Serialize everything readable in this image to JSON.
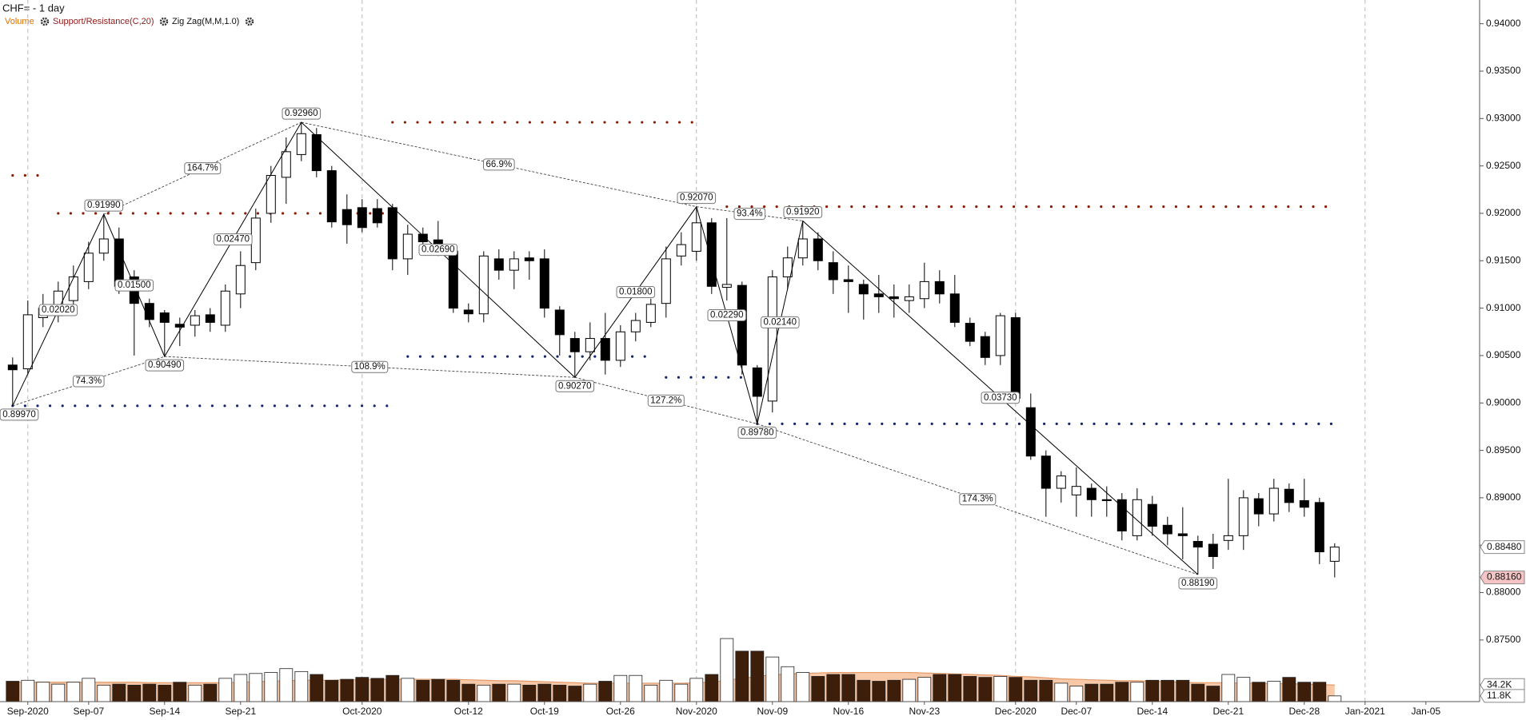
{
  "chart_data": {
    "type": "candlestick",
    "title": "CHF= - 1 day",
    "categories": [
      null,
      "Sep-2020",
      null,
      null,
      null,
      "Sep-07",
      null,
      null,
      null,
      null,
      "Sep-14",
      null,
      null,
      null,
      null,
      "Sep-21",
      null,
      null,
      null,
      null,
      null,
      null,
      null,
      "Oct-2020",
      null,
      null,
      null,
      null,
      null,
      null,
      "Oct-12",
      null,
      null,
      null,
      null,
      "Oct-19",
      null,
      null,
      null,
      null,
      "Oct-26",
      null,
      null,
      null,
      null,
      "Nov-2020",
      null,
      null,
      null,
      null,
      "Nov-09",
      null,
      null,
      null,
      null,
      "Nov-16",
      null,
      null,
      null,
      null,
      "Nov-23",
      null,
      null,
      null,
      null,
      null,
      "Dec-2020",
      null,
      null,
      null,
      "Dec-07",
      null,
      null,
      null,
      null,
      "Dec-14",
      null,
      null,
      null,
      null,
      "Dec-21",
      null,
      null,
      null,
      null,
      "Dec-28",
      null,
      null,
      null,
      "Jan-2021",
      null,
      null,
      null,
      "Jan-05"
    ],
    "ohlc": {
      "up_color": "#ffffff",
      "down_color": "#000000",
      "open": [
        0.904,
        0.9036,
        0.909,
        0.9092,
        0.9108,
        0.9128,
        0.9158,
        0.9173,
        0.9133,
        0.9105,
        0.9095,
        0.9083,
        0.9082,
        0.9093,
        0.9082,
        0.9115,
        0.9148,
        0.92,
        0.9238,
        0.9262,
        0.9283,
        0.9245,
        0.9204,
        0.9206,
        0.9205,
        0.9206,
        0.9152,
        0.9178,
        0.9172,
        0.916,
        0.9098,
        0.9094,
        0.9152,
        0.914,
        0.9153,
        0.9152,
        0.9098,
        0.9068,
        0.9054,
        0.9068,
        0.9045,
        0.9075,
        0.9085,
        0.9105,
        0.9155,
        0.916,
        0.919,
        0.9122,
        0.9124,
        0.9037,
        0.9002,
        0.9133,
        0.9153,
        0.9173,
        0.9148,
        0.913,
        0.9125,
        0.9115,
        0.9112,
        0.9108,
        0.911,
        0.9128,
        0.9115,
        0.9084,
        0.907,
        0.905,
        0.909,
        0.8995,
        0.8944,
        0.891,
        0.8903,
        0.891,
        0.8898,
        0.8898,
        0.886,
        0.8893,
        0.8871,
        0.8862,
        0.8854,
        0.8851,
        0.8855,
        0.886,
        0.8899,
        0.8883,
        0.8909,
        0.8897,
        0.8895,
        0.8833,
        null,
        null,
        null,
        null,
        null,
        null
      ],
      "high": [
        0.9048,
        0.9108,
        0.9115,
        0.9128,
        0.9145,
        0.917,
        0.9199,
        0.9185,
        0.914,
        0.911,
        0.9098,
        0.909,
        0.9098,
        0.91,
        0.9125,
        0.916,
        0.9205,
        0.925,
        0.928,
        0.9296,
        0.929,
        0.925,
        0.922,
        0.9215,
        0.9215,
        0.921,
        0.9188,
        0.9185,
        0.9192,
        0.9165,
        0.9105,
        0.916,
        0.9162,
        0.916,
        0.916,
        0.9162,
        0.9102,
        0.9075,
        0.9085,
        0.9095,
        0.9082,
        0.9095,
        0.911,
        0.9165,
        0.918,
        0.9207,
        0.9195,
        0.9195,
        0.9128,
        0.904,
        0.914,
        0.9165,
        0.9192,
        0.918,
        0.916,
        0.9145,
        0.913,
        0.9135,
        0.9125,
        0.9125,
        0.9148,
        0.914,
        0.9135,
        0.909,
        0.9075,
        0.9095,
        0.9095,
        0.901,
        0.895,
        0.8928,
        0.8932,
        0.8915,
        0.8912,
        0.8905,
        0.891,
        0.8902,
        0.888,
        0.889,
        0.886,
        0.8862,
        0.892,
        0.8908,
        0.8905,
        0.892,
        0.8915,
        0.892,
        0.89,
        0.8852,
        null,
        null,
        null,
        null,
        null,
        null
      ],
      "low": [
        0.8997,
        0.903,
        0.908,
        0.9085,
        0.9098,
        0.912,
        0.915,
        0.9115,
        0.905,
        0.908,
        0.9049,
        0.906,
        0.907,
        0.9075,
        0.9075,
        0.91,
        0.914,
        0.919,
        0.921,
        0.9255,
        0.9238,
        0.9185,
        0.9168,
        0.918,
        0.9185,
        0.914,
        0.9135,
        0.916,
        0.9155,
        0.9095,
        0.9085,
        0.9085,
        0.913,
        0.912,
        0.913,
        0.909,
        0.905,
        0.9027,
        0.9045,
        0.903,
        0.9038,
        0.9065,
        0.908,
        0.909,
        0.9145,
        0.915,
        0.9115,
        0.9108,
        0.903,
        0.8978,
        0.899,
        0.912,
        0.9145,
        0.914,
        0.9115,
        0.9095,
        0.9088,
        0.9095,
        0.909,
        0.9095,
        0.91,
        0.9105,
        0.908,
        0.906,
        0.904,
        0.904,
        0.9,
        0.894,
        0.888,
        0.8895,
        0.888,
        0.888,
        0.888,
        0.8855,
        0.8855,
        0.886,
        0.885,
        0.8835,
        0.8819,
        0.8825,
        0.8845,
        0.8845,
        0.887,
        0.8875,
        0.8885,
        0.888,
        0.883,
        0.8816,
        null,
        null,
        null,
        null,
        null,
        null
      ],
      "close": [
        0.9035,
        0.9093,
        0.91,
        0.9118,
        0.9133,
        0.9158,
        0.9173,
        0.9123,
        0.9105,
        0.9088,
        0.9085,
        0.908,
        0.9092,
        0.9085,
        0.9118,
        0.9145,
        0.9195,
        0.924,
        0.9265,
        0.9284,
        0.9245,
        0.9191,
        0.9188,
        0.9185,
        0.919,
        0.9152,
        0.9178,
        0.917,
        0.9168,
        0.91,
        0.9094,
        0.9155,
        0.914,
        0.9152,
        0.915,
        0.91,
        0.9072,
        0.9054,
        0.9068,
        0.9045,
        0.9075,
        0.9087,
        0.9104,
        0.9152,
        0.9167,
        0.919,
        0.9123,
        0.9125,
        0.904,
        0.9007,
        0.9133,
        0.9153,
        0.9173,
        0.915,
        0.913,
        0.9128,
        0.9115,
        0.9112,
        0.911,
        0.9112,
        0.9128,
        0.9115,
        0.9085,
        0.9065,
        0.9048,
        0.9092,
        0.9005,
        0.8944,
        0.891,
        0.8923,
        0.8912,
        0.8898,
        0.8897,
        0.8865,
        0.8898,
        0.887,
        0.8862,
        0.886,
        0.8848,
        0.8838,
        0.886,
        0.89,
        0.8883,
        0.891,
        0.8895,
        0.889,
        0.8843,
        0.8848,
        null,
        null,
        null,
        null,
        null,
        null
      ]
    },
    "ylim": [
      0.8685,
      0.9425
    ],
    "yticks": [
      {
        "value": 0.875,
        "label": "0.87500"
      },
      {
        "value": 0.88,
        "label": "0.88000"
      },
      {
        "value": 0.885,
        "label": "0.88500"
      },
      {
        "value": 0.89,
        "label": "0.89000"
      },
      {
        "value": 0.895,
        "label": "0.89500"
      },
      {
        "value": 0.9,
        "label": "0.90000"
      },
      {
        "value": 0.905,
        "label": "0.90500"
      },
      {
        "value": 0.91,
        "label": "0.91000"
      },
      {
        "value": 0.915,
        "label": "0.91500"
      },
      {
        "value": 0.92,
        "label": "0.92000"
      },
      {
        "value": 0.925,
        "label": "0.92500"
      },
      {
        "value": 0.93,
        "label": "0.93000"
      },
      {
        "value": 0.935,
        "label": "0.93500"
      },
      {
        "value": 0.94,
        "label": "0.94000"
      }
    ],
    "price_markers": [
      {
        "value": 0.8848,
        "label": "0.88480",
        "color": "#ffffff"
      },
      {
        "value": 0.8816,
        "label": "0.88160",
        "color": "#f6c4c4"
      }
    ],
    "volume": {
      "name": "Volume",
      "name_color": "#e07000",
      "up_color": "#ffffff",
      "down_color": "#3d1e0a",
      "ma_color": "#f7c9a9",
      "ma_line_color": "#e39a6a",
      "values": [
        42000,
        44000,
        40000,
        36000,
        40000,
        48000,
        34000,
        36000,
        34000,
        36000,
        34000,
        40000,
        34000,
        36000,
        48000,
        56000,
        58000,
        60000,
        68000,
        62000,
        56000,
        44000,
        46000,
        50000,
        48000,
        54000,
        48000,
        44000,
        46000,
        44000,
        36000,
        34000,
        36000,
        36000,
        34000,
        36000,
        34000,
        32000,
        36000,
        42000,
        54000,
        54000,
        34000,
        44000,
        36000,
        48000,
        56000,
        130000,
        104000,
        104000,
        92000,
        72000,
        60000,
        52000,
        56000,
        56000,
        44000,
        42000,
        44000,
        46000,
        50000,
        56000,
        56000,
        52000,
        50000,
        52000,
        50000,
        44000,
        44000,
        38000,
        32000,
        36000,
        36000,
        40000,
        40000,
        44000,
        44000,
        44000,
        36000,
        32000,
        56000,
        50000,
        40000,
        42000,
        50000,
        40000,
        40000,
        11800,
        null,
        null,
        null,
        null,
        null,
        null
      ],
      "ma": [
        40000,
        40000,
        40000,
        40000,
        40000,
        40000,
        40000,
        40000,
        40000,
        39000,
        39000,
        39000,
        39000,
        39000,
        39000,
        40000,
        41000,
        42000,
        43000,
        44000,
        44000,
        44000,
        45000,
        45000,
        46000,
        46000,
        46000,
        46000,
        46000,
        46000,
        45000,
        44000,
        43000,
        43000,
        42000,
        41000,
        40000,
        39000,
        38000,
        38000,
        38000,
        38000,
        38000,
        38000,
        38000,
        39000,
        40000,
        44000,
        48000,
        52000,
        55000,
        57000,
        58000,
        59000,
        60000,
        60000,
        60000,
        60000,
        60000,
        60000,
        59000,
        58000,
        57000,
        56000,
        55000,
        54000,
        52000,
        51000,
        49000,
        47000,
        46000,
        45000,
        44000,
        43000,
        43000,
        42000,
        41000,
        40000,
        39000,
        39000,
        39000,
        38000,
        38000,
        37000,
        37000,
        36000,
        35000,
        34200,
        null,
        null,
        null,
        null,
        null,
        null
      ],
      "ylim": [
        0,
        140000
      ],
      "yticks": [
        {
          "value": 34200,
          "label": "34.2K"
        },
        {
          "value": 11800,
          "label": "11.8K"
        }
      ]
    },
    "support_resistance": {
      "name": "Support/Resistance(C,20)",
      "name_color": "#8b1a1a",
      "resistance_color": "#8b1a00",
      "support_color": "#16236e",
      "resistance": [
        {
          "value": 0.924,
          "start": 0,
          "end": 2
        },
        {
          "value": 0.92,
          "start": 3,
          "end": 25
        },
        {
          "value": 0.9296,
          "start": 25,
          "end": 45
        },
        {
          "value": 0.9207,
          "start": 47,
          "end": 87
        }
      ],
      "support": [
        {
          "value": 0.8997,
          "start": 0,
          "end": 25
        },
        {
          "value": 0.9049,
          "start": 26,
          "end": 42
        },
        {
          "value": 0.9027,
          "start": 43,
          "end": 48
        },
        {
          "value": 0.8978,
          "start": 49,
          "end": 87
        }
      ]
    },
    "zigzag": {
      "name": "Zig Zag(M,M,1.0)",
      "color": "#000000",
      "pivots": [
        {
          "index": 0,
          "value": 0.8997,
          "label": "0.89970"
        },
        {
          "index": 6,
          "value": 0.9199,
          "label": "0.91990"
        },
        {
          "index": 10,
          "value": 0.9049,
          "label": "0.90490"
        },
        {
          "index": 19,
          "value": 0.9296,
          "label": "0.92960"
        },
        {
          "index": 37,
          "value": 0.9027,
          "label": "0.90270"
        },
        {
          "index": 45,
          "value": 0.9207,
          "label": "0.92070"
        },
        {
          "index": 49,
          "value": 0.8978,
          "label": "0.89780"
        },
        {
          "index": 52,
          "value": 0.9192,
          "label": "0.91920"
        },
        {
          "index": 78,
          "value": 0.8819,
          "label": "0.88190"
        }
      ],
      "legs": [
        {
          "value": 0.0202,
          "label": "0.02020"
        },
        {
          "value": 0.015,
          "label": "0.01500"
        },
        {
          "value": 0.0247,
          "label": "0.02470"
        },
        {
          "value": 0.0269,
          "label": "0.02690"
        },
        {
          "value": 0.018,
          "label": "0.01800"
        },
        {
          "value": 0.0229,
          "label": "0.02290"
        },
        {
          "value": 0.0214,
          "label": "0.02140"
        },
        {
          "value": 0.0373,
          "label": "0.03730"
        }
      ],
      "ratios": [
        {
          "value": 74.3,
          "label": "74.3%"
        },
        {
          "value": 164.7,
          "label": "164.7%"
        },
        {
          "value": 108.9,
          "label": "108.9%"
        },
        {
          "value": 66.9,
          "label": "66.9%"
        },
        {
          "value": 127.2,
          "label": "127.2%"
        },
        {
          "value": 93.4,
          "label": "93.4%"
        },
        {
          "value": 174.3,
          "label": "174.3%"
        }
      ]
    }
  }
}
